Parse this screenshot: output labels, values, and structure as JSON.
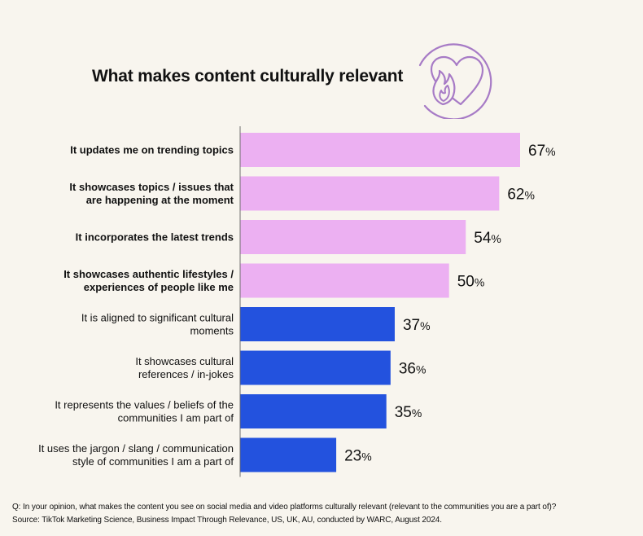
{
  "title": "What makes content culturally relevant",
  "footnote": {
    "question": "Q: In your opinion, what makes the content you see on social media and video platforms culturally relevant (relevant to the communities you are a part of)?",
    "source": "Source: TikTok Marketing Science, Business Impact Through Relevance, US, UK, AU, conducted by WARC, August 2024."
  },
  "colors": {
    "pink": "#ecb0f2",
    "blue": "#2352de",
    "emblem": "#a77bc6",
    "axis": "#6f6f6f",
    "background": "#f8f5ee"
  },
  "icons": [
    "heart-flame-icon"
  ],
  "chart_data": {
    "type": "bar",
    "orientation": "horizontal",
    "unit": "%",
    "categories": [
      [
        "It updates me on trending topics"
      ],
      [
        "It showcases topics / issues that",
        "are happening at the moment"
      ],
      [
        "It incorporates the latest trends"
      ],
      [
        "It showcases authentic lifestyles /",
        "experiences of people like me"
      ],
      [
        "It is aligned to significant cultural",
        "moments"
      ],
      [
        "It showcases cultural",
        "references / in-jokes"
      ],
      [
        "It represents the values / beliefs of the",
        "communities I am part of"
      ],
      [
        "It uses the jargon / slang / communication",
        "style of communities I am a part of"
      ]
    ],
    "values": [
      67,
      62,
      54,
      50,
      37,
      36,
      35,
      23
    ],
    "value_labels": [
      "67",
      "62",
      "54",
      "50",
      "37",
      "36",
      "35",
      "23"
    ],
    "highlight": [
      true,
      true,
      true,
      true,
      false,
      false,
      false,
      false
    ],
    "xlim": [
      0,
      67
    ],
    "grid": false,
    "legend": "none"
  }
}
